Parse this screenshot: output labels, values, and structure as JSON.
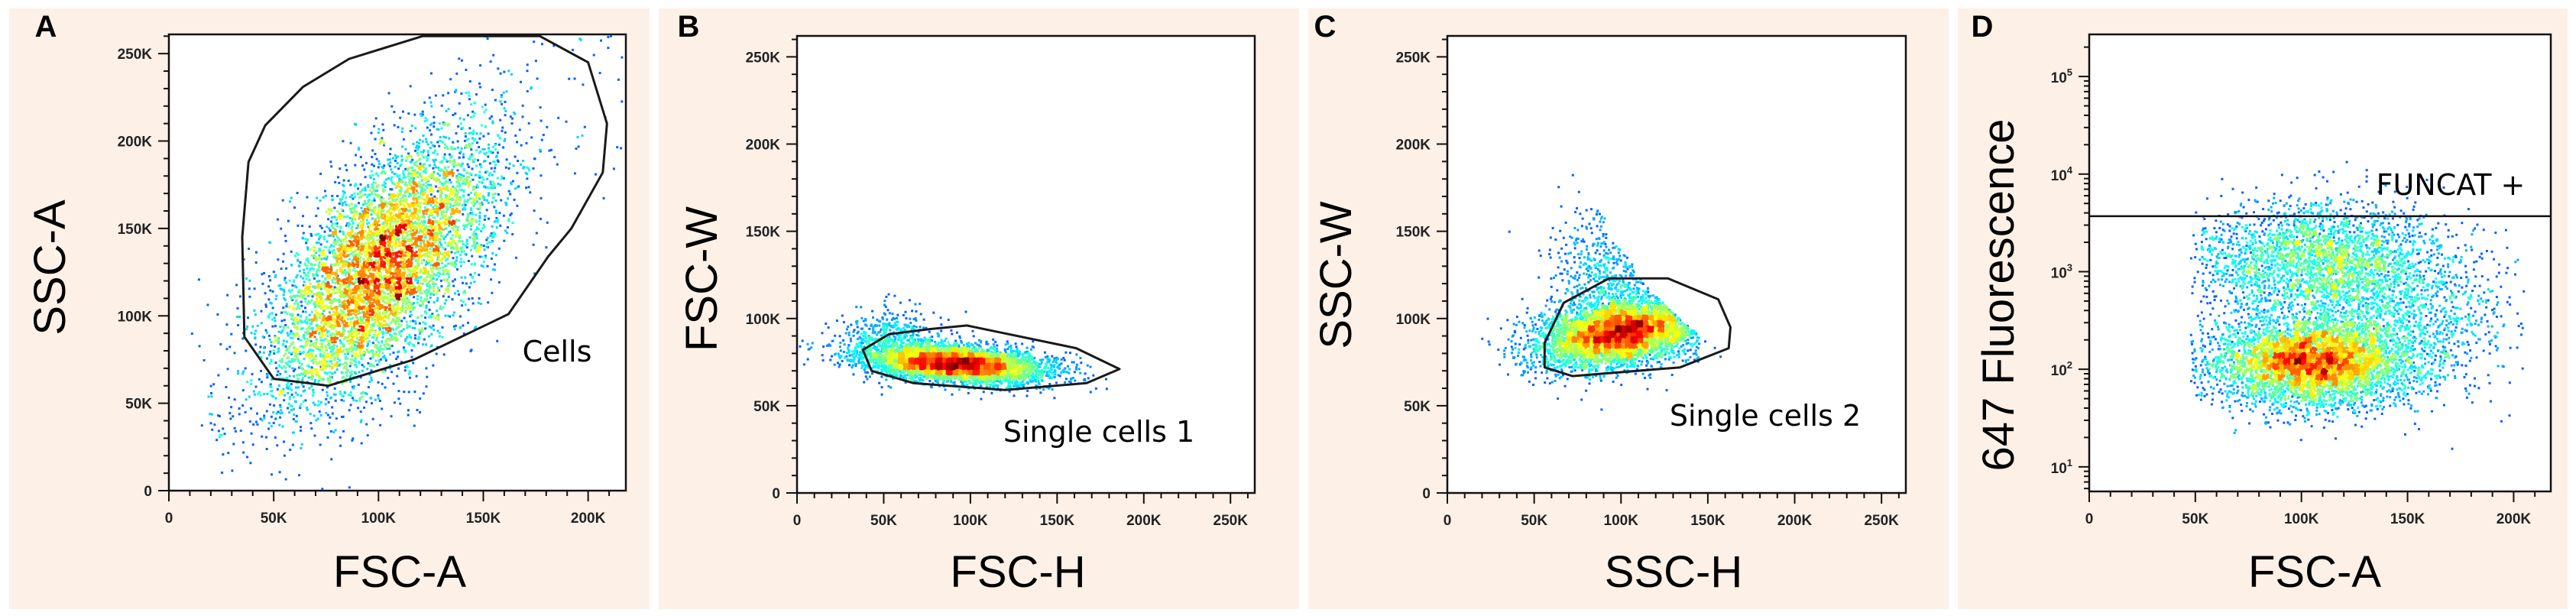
{
  "figure": {
    "background_color": "#fdf0e7",
    "density_colormap": [
      "#0000ff",
      "#00ffff",
      "#00ff00",
      "#ffff00",
      "#ff0000"
    ]
  },
  "chart_data": [
    {
      "panel": "A",
      "type": "scatter",
      "subtype": "density-dot-plot",
      "xlabel": "FSC-A",
      "ylabel": "SSC-A",
      "xscale": "linear",
      "yscale": "linear",
      "xlim": [
        0,
        218000
      ],
      "ylim": [
        0,
        261000
      ],
      "xticks": [
        {
          "v": 0,
          "l": "0"
        },
        {
          "v": 50000,
          "l": "50K"
        },
        {
          "v": 100000,
          "l": "100K"
        },
        {
          "v": 150000,
          "l": "150K"
        },
        {
          "v": 200000,
          "l": "200K"
        }
      ],
      "yticks": [
        {
          "v": 0,
          "l": "0"
        },
        {
          "v": 50000,
          "l": "50K"
        },
        {
          "v": 100000,
          "l": "100K"
        },
        {
          "v": 150000,
          "l": "150K"
        },
        {
          "v": 200000,
          "l": "200K"
        },
        {
          "v": 250000,
          "l": "250K"
        }
      ],
      "gate": {
        "label": "Cells",
        "type": "polygon",
        "vertices": [
          [
            38000,
            188000
          ],
          [
            46000,
            209000
          ],
          [
            64000,
            231000
          ],
          [
            86000,
            247000
          ],
          [
            121000,
            260000
          ],
          [
            177000,
            260000
          ],
          [
            200000,
            245000
          ],
          [
            209000,
            210000
          ],
          [
            207000,
            182000
          ],
          [
            192000,
            150000
          ],
          [
            181000,
            134000
          ],
          [
            162000,
            101000
          ],
          [
            117000,
            75000
          ],
          [
            76000,
            60000
          ],
          [
            50000,
            64000
          ],
          [
            36000,
            88000
          ],
          [
            35000,
            145000
          ]
        ]
      },
      "populations": [
        {
          "kind": "gaussian",
          "n": 6500,
          "center": [
            102000,
            128000
          ],
          "sd": [
            27000,
            38000
          ],
          "rho": 0.62
        },
        {
          "kind": "uniform",
          "n": 90,
          "x_range": [
            18000,
            60000
          ],
          "y_range": [
            5000,
            70000
          ]
        },
        {
          "kind": "uniform",
          "n": 120,
          "x_range": [
            150000,
            218000
          ],
          "y_range": [
            180000,
            261000
          ]
        }
      ]
    },
    {
      "panel": "B",
      "type": "scatter",
      "subtype": "density-dot-plot",
      "xlabel": "FSC-H",
      "ylabel": "FSC-W",
      "xscale": "linear",
      "yscale": "linear",
      "xlim": [
        0,
        264000
      ],
      "ylim": [
        0,
        262000
      ],
      "xticks": [
        {
          "v": 0,
          "l": "0"
        },
        {
          "v": 50000,
          "l": "50K"
        },
        {
          "v": 100000,
          "l": "100K"
        },
        {
          "v": 150000,
          "l": "150K"
        },
        {
          "v": 200000,
          "l": "200K"
        },
        {
          "v": 250000,
          "l": "250K"
        }
      ],
      "yticks": [
        {
          "v": 0,
          "l": "0"
        },
        {
          "v": 50000,
          "l": "50K"
        },
        {
          "v": 100000,
          "l": "100K"
        },
        {
          "v": 150000,
          "l": "150K"
        },
        {
          "v": 200000,
          "l": "200K"
        },
        {
          "v": 250000,
          "l": "250K"
        }
      ],
      "gate": {
        "label": "Single cells 1",
        "type": "polygon",
        "vertices": [
          [
            38000,
            82000
          ],
          [
            53000,
            91000
          ],
          [
            77000,
            94000
          ],
          [
            98000,
            96000
          ],
          [
            161000,
            83000
          ],
          [
            186000,
            71000
          ],
          [
            167000,
            63000
          ],
          [
            120000,
            59000
          ],
          [
            67000,
            63000
          ],
          [
            43000,
            70000
          ]
        ]
      },
      "populations": [
        {
          "kind": "gaussian",
          "n": 5200,
          "center": [
            92000,
            74000
          ],
          "sd": [
            26000,
            5500
          ],
          "rho": -0.35
        },
        {
          "kind": "gaussian",
          "n": 500,
          "center": [
            55000,
            88000
          ],
          "sd": [
            14000,
            9000
          ],
          "rho": -0.2
        }
      ]
    },
    {
      "panel": "C",
      "type": "scatter",
      "subtype": "density-dot-plot",
      "xlabel": "SSC-H",
      "ylabel": "SSC-W",
      "xscale": "linear",
      "yscale": "linear",
      "xlim": [
        0,
        264000
      ],
      "ylim": [
        0,
        262000
      ],
      "xticks": [
        {
          "v": 0,
          "l": "0"
        },
        {
          "v": 50000,
          "l": "50K"
        },
        {
          "v": 100000,
          "l": "100K"
        },
        {
          "v": 150000,
          "l": "150K"
        },
        {
          "v": 200000,
          "l": "200K"
        },
        {
          "v": 250000,
          "l": "250K"
        }
      ],
      "yticks": [
        {
          "v": 0,
          "l": "0"
        },
        {
          "v": 50000,
          "l": "50K"
        },
        {
          "v": 100000,
          "l": "100K"
        },
        {
          "v": 150000,
          "l": "150K"
        },
        {
          "v": 200000,
          "l": "200K"
        },
        {
          "v": 250000,
          "l": "250K"
        }
      ],
      "gate": {
        "label": "Single cells 2",
        "type": "polygon",
        "vertices": [
          [
            56000,
            86000
          ],
          [
            67000,
            109000
          ],
          [
            93000,
            123000
          ],
          [
            127000,
            123000
          ],
          [
            156000,
            111000
          ],
          [
            163000,
            95000
          ],
          [
            162000,
            83000
          ],
          [
            134000,
            72000
          ],
          [
            72000,
            67000
          ],
          [
            56000,
            72000
          ]
        ]
      },
      "populations": [
        {
          "kind": "gaussian",
          "n": 5200,
          "center": [
            100000,
            92000
          ],
          "sd": [
            24000,
            10000
          ],
          "rho": 0.35
        },
        {
          "kind": "gaussian",
          "n": 700,
          "center": [
            95000,
            125000
          ],
          "sd": [
            18000,
            20000
          ],
          "rho": 0.0
        },
        {
          "kind": "tail",
          "n": 450,
          "x_range": [
            150000,
            262000
          ],
          "y_start": 103000,
          "y_end": 66000
        }
      ]
    },
    {
      "panel": "D",
      "type": "scatter",
      "subtype": "density-dot-plot",
      "xlabel": "FSC-A",
      "ylabel": "647 Fluorescence",
      "xscale": "linear",
      "yscale": "log",
      "xlim": [
        0,
        217500
      ],
      "ylim": [
        5.6,
        270000
      ],
      "xticks": [
        {
          "v": 0,
          "l": "0"
        },
        {
          "v": 50000,
          "l": "50K"
        },
        {
          "v": 100000,
          "l": "100K"
        },
        {
          "v": 150000,
          "l": "150K"
        },
        {
          "v": 200000,
          "l": "200K"
        }
      ],
      "yticks": [
        {
          "v": 10,
          "base": "10",
          "exp": "1"
        },
        {
          "v": 100,
          "base": "10",
          "exp": "2"
        },
        {
          "v": 1000,
          "base": "10",
          "exp": "3"
        },
        {
          "v": 10000,
          "base": "10",
          "exp": "4"
        },
        {
          "v": 100000,
          "base": "10",
          "exp": "5"
        }
      ],
      "gate": {
        "label": "FUNCAT +",
        "type": "threshold",
        "y": 3700
      },
      "populations": [
        {
          "kind": "lognormal-y",
          "n": 4500,
          "center": [
            105000,
            115
          ],
          "sd_x": 24000,
          "sd_decades": 0.22
        },
        {
          "kind": "lognormal-y",
          "n": 2600,
          "center": [
            108000,
            1300
          ],
          "sd_x": 30000,
          "sd_decades": 0.3
        },
        {
          "kind": "lognormal-y",
          "n": 1200,
          "center": [
            140000,
            300
          ],
          "sd_x": 32000,
          "sd_decades": 0.35
        }
      ]
    }
  ]
}
